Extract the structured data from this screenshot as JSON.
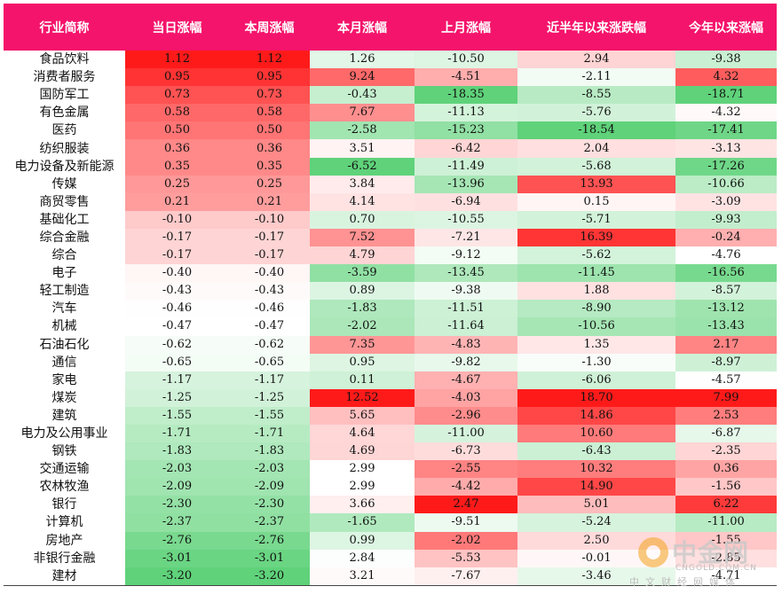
{
  "chart_data": {
    "type": "table",
    "columns": [
      "行业简称",
      "当日涨幅",
      "本周涨幅",
      "本月涨幅",
      "上月涨幅",
      "近半年以来涨跌幅",
      "今年以来涨幅"
    ],
    "rows": [
      [
        "食品饮料",
        "1.12",
        "1.12",
        "1.26",
        "-10.50",
        "2.94",
        "-9.38"
      ],
      [
        "消费者服务",
        "0.95",
        "0.95",
        "9.24",
        "-4.51",
        "-2.11",
        "4.32"
      ],
      [
        "国防军工",
        "0.73",
        "0.73",
        "-0.43",
        "-18.35",
        "-8.55",
        "-18.71"
      ],
      [
        "有色金属",
        "0.58",
        "0.58",
        "7.67",
        "-11.13",
        "-5.76",
        "-4.32"
      ],
      [
        "医药",
        "0.50",
        "0.50",
        "-2.58",
        "-15.23",
        "-18.54",
        "-17.41"
      ],
      [
        "纺织服装",
        "0.36",
        "0.36",
        "3.51",
        "-6.42",
        "2.04",
        "-3.13"
      ],
      [
        "电力设备及新能源",
        "0.35",
        "0.35",
        "-6.52",
        "-11.49",
        "-5.68",
        "-17.26"
      ],
      [
        "传媒",
        "0.25",
        "0.25",
        "3.84",
        "-13.96",
        "13.93",
        "-10.66"
      ],
      [
        "商贸零售",
        "0.21",
        "0.21",
        "4.14",
        "-6.94",
        "0.15",
        "-3.09"
      ],
      [
        "基础化工",
        "-0.10",
        "-0.10",
        "0.70",
        "-10.55",
        "-5.71",
        "-9.93"
      ],
      [
        "综合金融",
        "-0.17",
        "-0.17",
        "7.52",
        "-7.21",
        "16.39",
        "-0.24"
      ],
      [
        "综合",
        "-0.17",
        "-0.17",
        "4.79",
        "-9.12",
        "-5.62",
        "-4.76"
      ],
      [
        "电子",
        "-0.40",
        "-0.40",
        "-3.59",
        "-13.45",
        "-11.45",
        "-16.56"
      ],
      [
        "轻工制造",
        "-0.43",
        "-0.43",
        "0.89",
        "-9.38",
        "1.88",
        "-8.57"
      ],
      [
        "汽车",
        "-0.46",
        "-0.46",
        "-1.83",
        "-11.51",
        "-8.90",
        "-13.12"
      ],
      [
        "机械",
        "-0.47",
        "-0.47",
        "-2.02",
        "-11.64",
        "-10.56",
        "-13.43"
      ],
      [
        "石油石化",
        "-0.62",
        "-0.62",
        "7.35",
        "-4.83",
        "1.35",
        "2.17"
      ],
      [
        "通信",
        "-0.65",
        "-0.65",
        "0.95",
        "-9.82",
        "-1.30",
        "-8.97"
      ],
      [
        "家电",
        "-1.17",
        "-1.17",
        "0.11",
        "-4.67",
        "-6.06",
        "-4.57"
      ],
      [
        "煤炭",
        "-1.25",
        "-1.25",
        "12.52",
        "-4.03",
        "18.70",
        "7.99"
      ],
      [
        "建筑",
        "-1.55",
        "-1.55",
        "5.65",
        "-2.96",
        "14.86",
        "2.53"
      ],
      [
        "电力及公用事业",
        "-1.71",
        "-1.71",
        "4.64",
        "-11.00",
        "10.60",
        "-6.87"
      ],
      [
        "钢铁",
        "-1.83",
        "-1.83",
        "4.69",
        "-6.73",
        "-6.43",
        "-2.35"
      ],
      [
        "交通运输",
        "-2.03",
        "-2.03",
        "2.99",
        "-2.55",
        "10.32",
        "0.36"
      ],
      [
        "农林牧渔",
        "-2.09",
        "-2.09",
        "2.99",
        "-4.42",
        "14.90",
        "-1.56"
      ],
      [
        "银行",
        "-2.30",
        "-2.30",
        "3.66",
        "2.47",
        "5.01",
        "6.22"
      ],
      [
        "计算机",
        "-2.37",
        "-2.37",
        "-1.65",
        "-9.51",
        "-5.24",
        "-11.00"
      ],
      [
        "房地产",
        "-2.76",
        "-2.76",
        "0.99",
        "-2.02",
        "2.50",
        "-1.55"
      ],
      [
        "非银行金融",
        "-3.01",
        "-3.01",
        "2.84",
        "-5.53",
        "-0.01",
        "-2.85"
      ],
      [
        "建材",
        "-3.20",
        "-3.20",
        "3.21",
        "-7.67",
        "-3.46",
        "-4.71"
      ]
    ],
    "color_scale": {
      "high": "#ff1a1a",
      "mid": "#ffffff",
      "low": "#5fd27a"
    },
    "header_color": "#f4146b"
  },
  "watermark": {
    "name": "中金网",
    "url": "CNGOLD.COM.CN",
    "tagline": "中文财经网媒体"
  }
}
